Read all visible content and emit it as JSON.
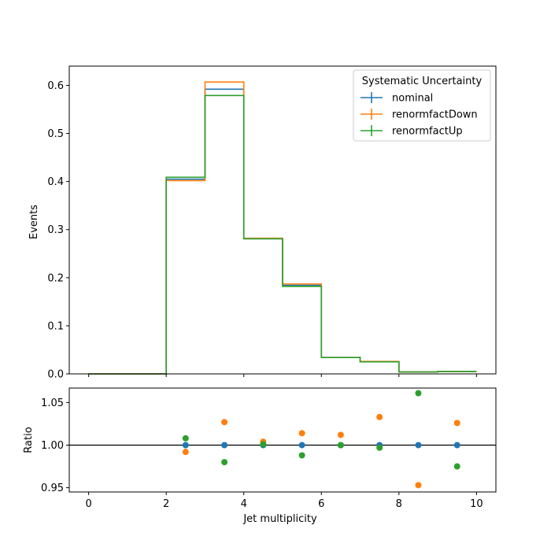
{
  "chart_data": [
    {
      "type": "line",
      "style": "step-histogram",
      "xlabel": "",
      "ylabel": "Events",
      "xlim": [
        -0.5,
        10.5
      ],
      "ylim": [
        0,
        0.64
      ],
      "bin_edges": [
        0,
        1,
        2,
        3,
        4,
        5,
        6,
        7,
        8,
        9,
        10
      ],
      "x_ticks": [
        "0",
        "2",
        "4",
        "6",
        "8",
        "10"
      ],
      "y_ticks": [
        "0.0",
        "0.1",
        "0.2",
        "0.3",
        "0.4",
        "0.5",
        "0.6"
      ],
      "legend": {
        "title": "Systematic Uncertainty",
        "placement": "top-right"
      },
      "series": [
        {
          "name": "nominal",
          "color": "#1f77b4",
          "values": [
            0,
            0,
            0.405,
            0.592,
            0.281,
            0.184,
            0.034,
            0.025,
            0.004,
            0.005
          ]
        },
        {
          "name": "renormfactDown",
          "color": "#ff7f0e",
          "values": [
            0,
            0,
            0.402,
            0.607,
            0.282,
            0.187,
            0.034,
            0.026,
            0.004,
            0.005
          ]
        },
        {
          "name": "renormfactUp",
          "color": "#2ca02c",
          "values": [
            0,
            0,
            0.409,
            0.579,
            0.281,
            0.182,
            0.034,
            0.025,
            0.004,
            0.005
          ]
        }
      ]
    },
    {
      "type": "scatter",
      "xlabel": "Jet multiplicity",
      "ylabel": "Ratio",
      "xlim": [
        -0.5,
        10.5
      ],
      "ylim": [
        0.945,
        1.067
      ],
      "reference_line": 1.0,
      "x_ticks": [
        "0",
        "2",
        "4",
        "6",
        "8",
        "10"
      ],
      "y_ticks": [
        "0.95",
        "1.00",
        "1.05"
      ],
      "x": [
        2.5,
        3.5,
        4.5,
        5.5,
        6.5,
        7.5,
        8.5,
        9.5
      ],
      "series": [
        {
          "name": "nominal",
          "color": "#1f77b4",
          "values": [
            1.0,
            1.0,
            1.0,
            1.0,
            1.0,
            1.0,
            1.0,
            1.0
          ]
        },
        {
          "name": "renormfactDown",
          "color": "#ff7f0e",
          "values": [
            0.992,
            1.027,
            1.004,
            1.014,
            1.012,
            1.033,
            0.953,
            1.026
          ]
        },
        {
          "name": "renormfactUp",
          "color": "#2ca02c",
          "values": [
            1.008,
            0.98,
            1.001,
            0.988,
            1.0,
            0.997,
            1.061,
            0.975
          ]
        }
      ]
    }
  ]
}
